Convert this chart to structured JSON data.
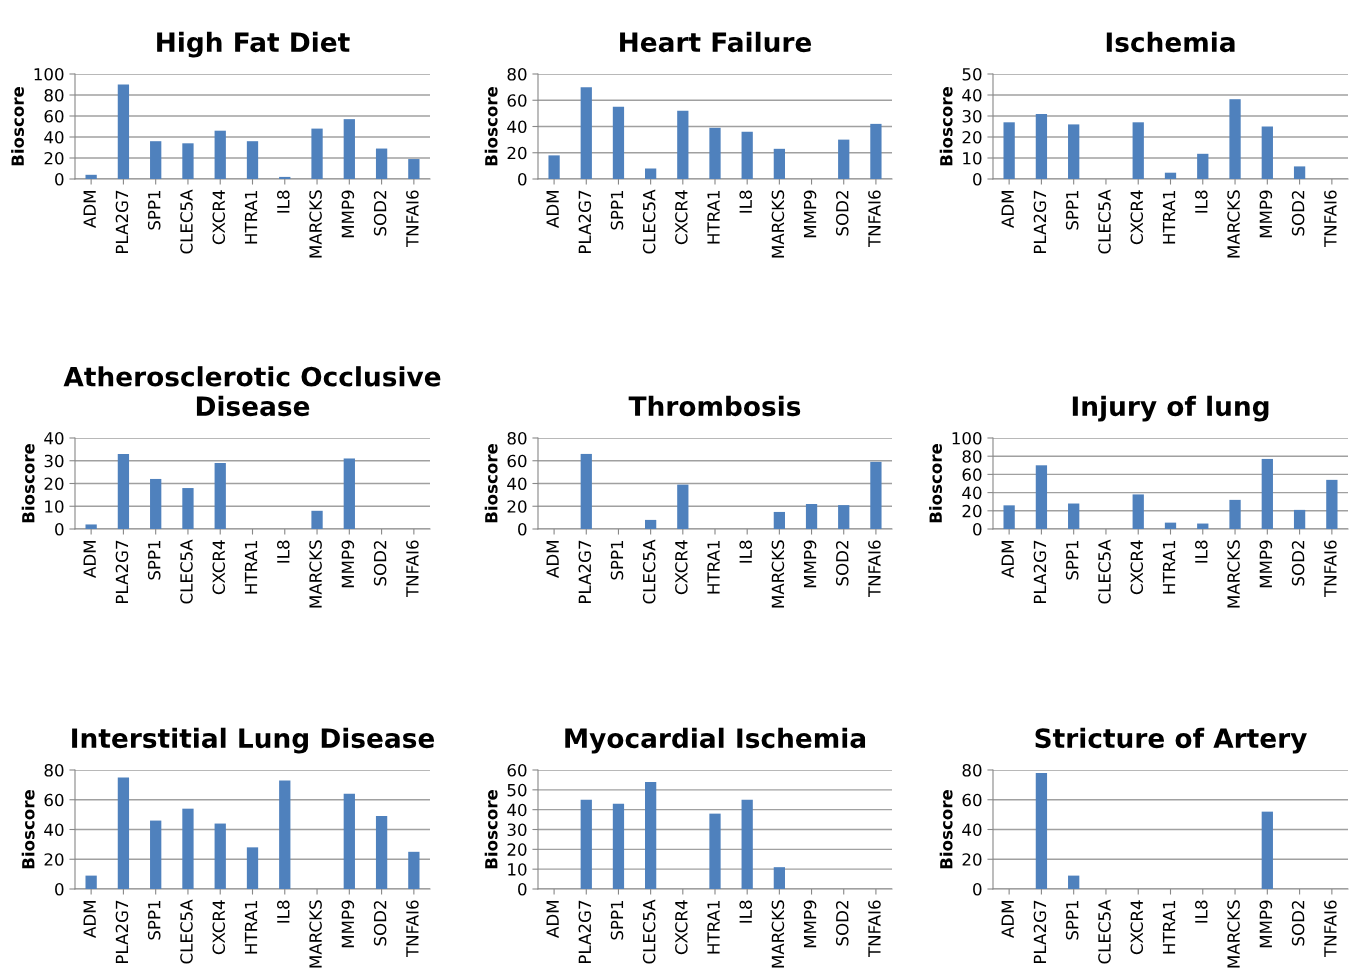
{
  "chart_data": [
    {
      "type": "bar",
      "title": "High Fat Diet",
      "ylabel": "Bioscore",
      "categories": [
        "ADM",
        "PLA2G7",
        "SPP1",
        "CLEC5A",
        "CXCR4",
        "HTRA1",
        "IL8",
        "MARCKS",
        "MMP9",
        "SOD2",
        "TNFAI6"
      ],
      "values": [
        4,
        90,
        36,
        34,
        46,
        36,
        2,
        48,
        57,
        29,
        19
      ],
      "color": "#4f81bd",
      "ylim": [
        0,
        100
      ],
      "yticks": [
        0,
        20,
        40,
        60,
        80,
        100
      ],
      "grid": "y"
    },
    {
      "type": "bar",
      "title": "Heart Failure",
      "ylabel": "Bioscore",
      "categories": [
        "ADM",
        "PLA2G7",
        "SPP1",
        "CLEC5A",
        "CXCR4",
        "HTRA1",
        "IL8",
        "MARCKS",
        "MMP9",
        "SOD2",
        "TNFAI6"
      ],
      "values": [
        18,
        70,
        55,
        8,
        52,
        39,
        36,
        23,
        0,
        30,
        42
      ],
      "color": "#4f81bd",
      "ylim": [
        0,
        80
      ],
      "yticks": [
        0,
        20,
        40,
        60,
        80
      ],
      "grid": "y"
    },
    {
      "type": "bar",
      "title": "Ischemia",
      "ylabel": "Bioscore",
      "categories": [
        "ADM",
        "PLA2G7",
        "SPP1",
        "CLEC5A",
        "CXCR4",
        "HTRA1",
        "IL8",
        "MARCKS",
        "MMP9",
        "SOD2",
        "TNFAI6"
      ],
      "values": [
        27,
        31,
        26,
        0,
        27,
        3,
        12,
        38,
        25,
        6,
        0
      ],
      "color": "#4f81bd",
      "ylim": [
        0,
        50
      ],
      "yticks": [
        0,
        10,
        20,
        30,
        40,
        50
      ],
      "grid": "y"
    },
    {
      "type": "bar",
      "title": "Atherosclerotic Occlusive\nDisease",
      "ylabel": "Bioscore",
      "categories": [
        "ADM",
        "PLA2G7",
        "SPP1",
        "CLEC5A",
        "CXCR4",
        "HTRA1",
        "IL8",
        "MARCKS",
        "MMP9",
        "SOD2",
        "TNFAI6"
      ],
      "values": [
        2,
        33,
        22,
        18,
        29,
        0,
        0,
        8,
        31,
        0,
        0
      ],
      "color": "#4f81bd",
      "ylim": [
        0,
        40
      ],
      "yticks": [
        0,
        10,
        20,
        30,
        40
      ],
      "grid": "y"
    },
    {
      "type": "bar",
      "title": "Thrombosis",
      "ylabel": "Bioscore",
      "categories": [
        "ADM",
        "PLA2G7",
        "SPP1",
        "CLEC5A",
        "CXCR4",
        "HTRA1",
        "IL8",
        "MARCKS",
        "MMP9",
        "SOD2",
        "TNFAI6"
      ],
      "values": [
        0,
        66,
        0,
        8,
        39,
        0,
        0,
        15,
        22,
        21,
        59
      ],
      "color": "#4f81bd",
      "ylim": [
        0,
        80
      ],
      "yticks": [
        0,
        20,
        40,
        60,
        80
      ],
      "grid": "y"
    },
    {
      "type": "bar",
      "title": "Injury of lung",
      "ylabel": "Bioscore",
      "categories": [
        "ADM",
        "PLA2G7",
        "SPP1",
        "CLEC5A",
        "CXCR4",
        "HTRA1",
        "IL8",
        "MARCKS",
        "MMP9",
        "SOD2",
        "TNFAI6"
      ],
      "values": [
        26,
        70,
        28,
        0,
        38,
        7,
        6,
        32,
        77,
        21,
        54
      ],
      "color": "#4f81bd",
      "ylim": [
        0,
        100
      ],
      "yticks": [
        0,
        20,
        40,
        60,
        80,
        100
      ],
      "grid": "y"
    },
    {
      "type": "bar",
      "title": "Interstitial Lung Disease",
      "ylabel": "Bioscore",
      "categories": [
        "ADM",
        "PLA2G7",
        "SPP1",
        "CLEC5A",
        "CXCR4",
        "HTRA1",
        "IL8",
        "MARCKS",
        "MMP9",
        "SOD2",
        "TNFAI6"
      ],
      "values": [
        9,
        75,
        46,
        54,
        44,
        28,
        73,
        0,
        64,
        49,
        25
      ],
      "color": "#4f81bd",
      "ylim": [
        0,
        80
      ],
      "yticks": [
        0,
        20,
        40,
        60,
        80
      ],
      "grid": "y"
    },
    {
      "type": "bar",
      "title": "Myocardial Ischemia",
      "ylabel": "Bioscore",
      "categories": [
        "ADM",
        "PLA2G7",
        "SPP1",
        "CLEC5A",
        "CXCR4",
        "HTRA1",
        "IL8",
        "MARCKS",
        "MMP9",
        "SOD2",
        "TNFAI6"
      ],
      "values": [
        0,
        45,
        43,
        54,
        0,
        38,
        45,
        11,
        0,
        0,
        0
      ],
      "color": "#4f81bd",
      "ylim": [
        0,
        60
      ],
      "yticks": [
        0,
        10,
        20,
        30,
        40,
        50,
        60
      ],
      "grid": "y"
    },
    {
      "type": "bar",
      "title": "Stricture of Artery",
      "ylabel": "Bioscore",
      "categories": [
        "ADM",
        "PLA2G7",
        "SPP1",
        "CLEC5A",
        "CXCR4",
        "HTRA1",
        "IL8",
        "MARCKS",
        "MMP9",
        "SOD2",
        "TNFAI6"
      ],
      "values": [
        0,
        78,
        9,
        0,
        0,
        0,
        0,
        0,
        52,
        0,
        0
      ],
      "color": "#4f81bd",
      "ylim": [
        0,
        80
      ],
      "yticks": [
        0,
        20,
        40,
        60,
        80
      ],
      "grid": "y"
    }
  ]
}
